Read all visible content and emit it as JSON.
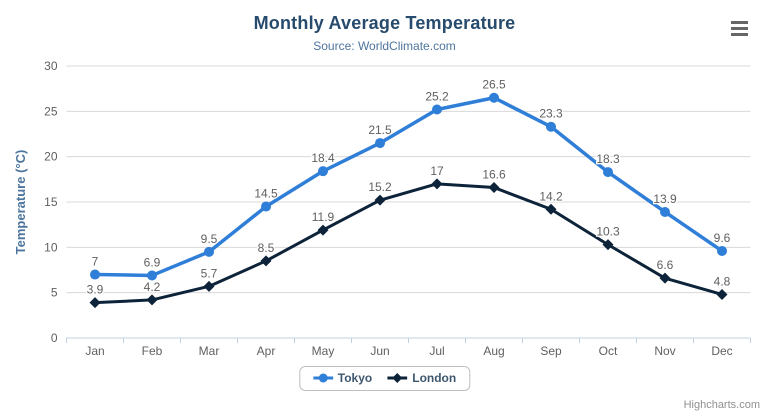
{
  "header": {
    "title": "Monthly Average Temperature",
    "subtitle": "Source: WorldClimate.com"
  },
  "menu": {
    "icon": "hamburger-icon",
    "tooltip": "Chart context menu"
  },
  "credits": {
    "label": "Highcharts.com"
  },
  "colors": {
    "title": "#274b6d",
    "subtitle": "#4d759e",
    "axis_title": "#4d759e",
    "axis_labels": "#606060",
    "data_labels": "#606060",
    "grid": "#d8d8d8",
    "axis_line": "#c0d0e0",
    "legend_text": "#3e576f",
    "menu_icon": "#666666",
    "tokyo": "#2f7ed8",
    "london": "#0d233a"
  },
  "chart_data": {
    "type": "line",
    "title": "Monthly Average Temperature",
    "subtitle": "Source: WorldClimate.com",
    "categories": [
      "Jan",
      "Feb",
      "Mar",
      "Apr",
      "May",
      "Jun",
      "Jul",
      "Aug",
      "Sep",
      "Oct",
      "Nov",
      "Dec"
    ],
    "series": [
      {
        "name": "Tokyo",
        "color": "#2f7ed8",
        "marker": "circle",
        "values": [
          7,
          6.9,
          9.5,
          14.5,
          18.4,
          21.5,
          25.2,
          26.5,
          23.3,
          18.3,
          13.9,
          9.6
        ]
      },
      {
        "name": "London",
        "color": "#0d233a",
        "marker": "diamond",
        "values": [
          3.9,
          4.2,
          5.7,
          8.5,
          11.9,
          15.2,
          17,
          16.6,
          14.2,
          10.3,
          6.6,
          4.8
        ]
      }
    ],
    "xlabel": "",
    "ylabel": "Temperature (°C)",
    "ylim": [
      0,
      30
    ],
    "ytick_step": 5,
    "yticks": [
      0,
      5,
      10,
      15,
      20,
      25,
      30
    ],
    "grid": true,
    "data_labels": true,
    "legend_position": "bottom"
  }
}
